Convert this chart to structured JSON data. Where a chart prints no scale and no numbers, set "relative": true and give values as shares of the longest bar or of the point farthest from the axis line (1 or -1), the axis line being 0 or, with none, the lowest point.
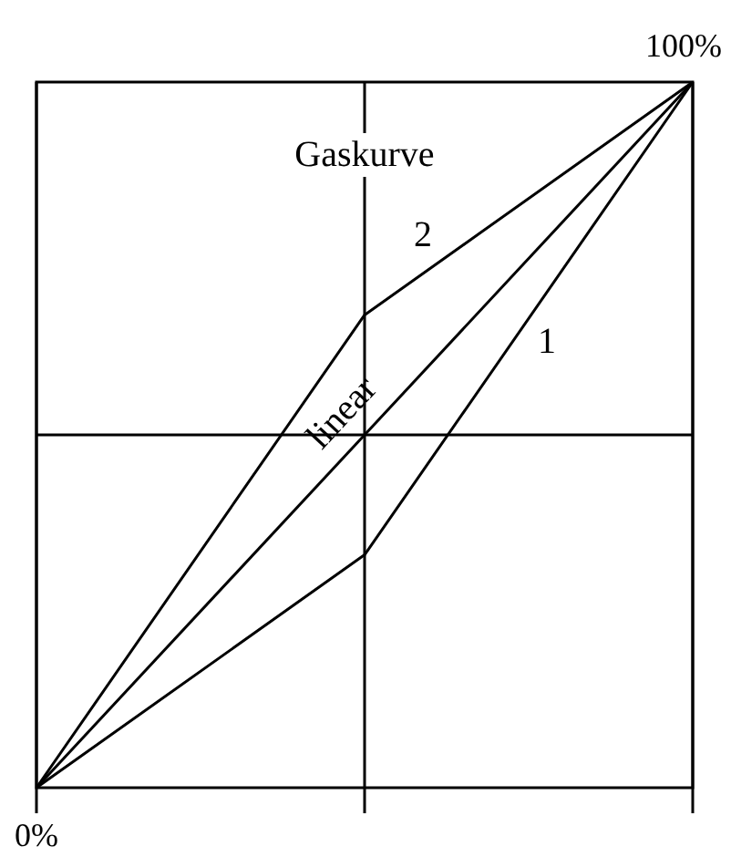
{
  "chart_data": {
    "type": "line",
    "title": "Gaskurve",
    "relative": true,
    "grid": "x",
    "legend": false,
    "marker": "none",
    "line_style": "solid",
    "categories": [
      null,
      null,
      null
    ],
    "series": [
      {
        "name": "linear",
        "color": "#000000",
        "values": [
          0,
          0.5,
          1
        ]
      },
      {
        "name": "2",
        "color": "#000000",
        "values": [
          0,
          0.67,
          1
        ]
      },
      {
        "name": "1",
        "color": "#000000",
        "values": [
          0,
          0.33,
          1
        ]
      }
    ],
    "ref_lines": [
      {
        "axis": "y",
        "value": 0.5,
        "color": "#000000",
        "line_style": "solid"
      }
    ],
    "annotations": [
      "0%",
      "100%"
    ]
  }
}
